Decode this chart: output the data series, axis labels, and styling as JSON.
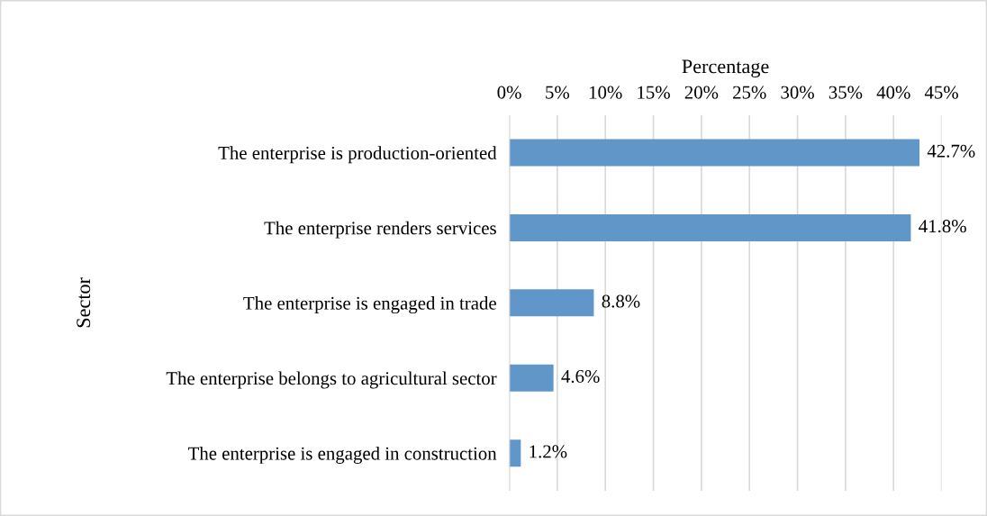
{
  "chart_data": {
    "type": "bar",
    "orientation": "horizontal",
    "xlabel": "Percentage",
    "ylabel": "Sector",
    "categories": [
      "The enterprise is production-oriented",
      "The enterprise renders services",
      "The enterprise is engaged in trade",
      "The enterprise belongs to agricultural sector",
      "The enterprise is engaged in construction"
    ],
    "values": [
      42.7,
      41.8,
      8.8,
      4.6,
      1.2
    ],
    "value_labels": [
      "42.7%",
      "41.8%",
      "8.8%",
      "4.6%",
      "1.2%"
    ],
    "color": "#6196c9",
    "xlim": [
      0,
      45
    ],
    "xticks": [
      {
        "value": 0,
        "label": "0%"
      },
      {
        "value": 5,
        "label": "5%"
      },
      {
        "value": 10,
        "label": "10%"
      },
      {
        "value": 15,
        "label": "15%"
      },
      {
        "value": 20,
        "label": "20%"
      },
      {
        "value": 25,
        "label": "25%"
      },
      {
        "value": 30,
        "label": "30%"
      },
      {
        "value": 35,
        "label": "35%"
      },
      {
        "value": 40,
        "label": "40%"
      },
      {
        "value": 45,
        "label": "45%"
      }
    ],
    "grid": "x",
    "legend": false
  }
}
